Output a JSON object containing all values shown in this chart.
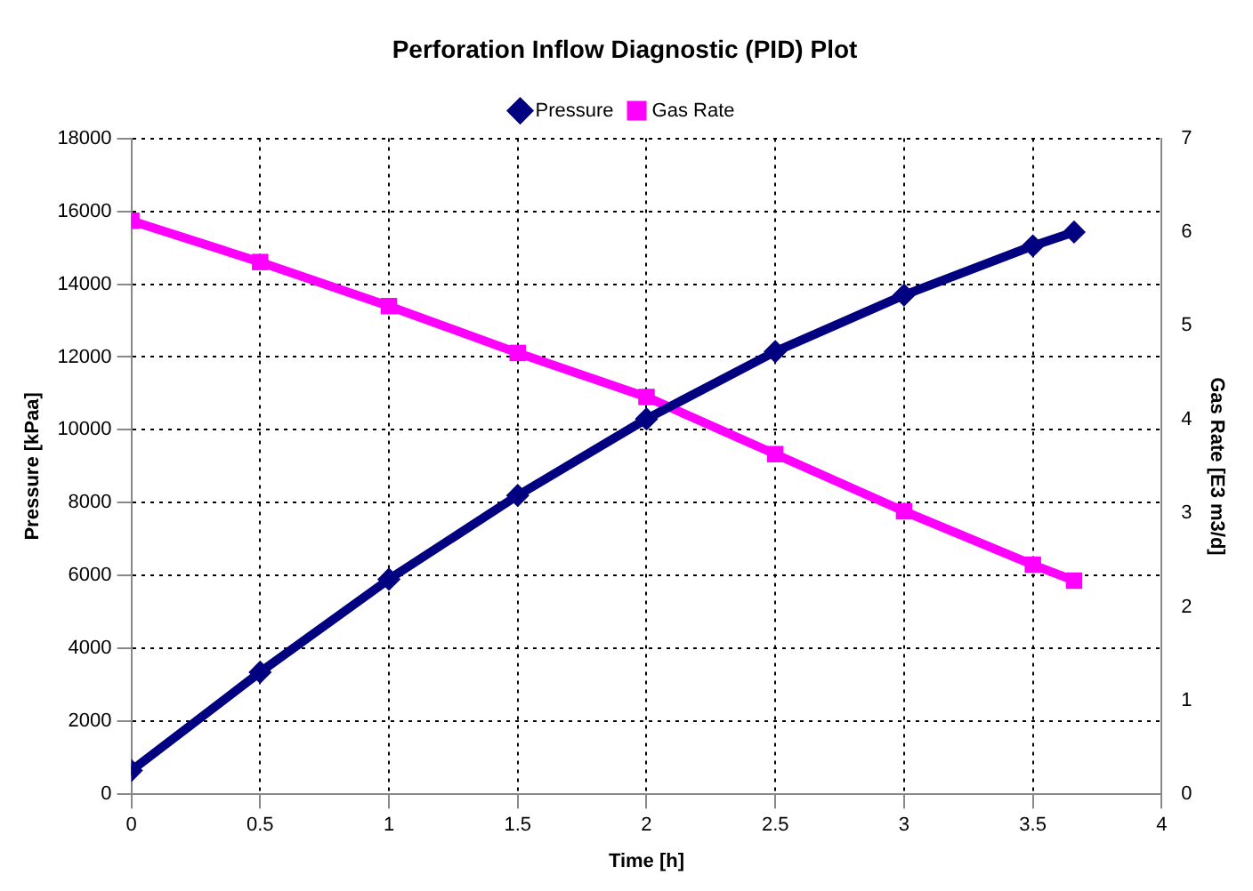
{
  "chart_data": {
    "type": "line",
    "title": "Perforation Inflow Diagnostic (PID) Plot",
    "xlabel": "Time [h]",
    "ylabel": "Pressure [kPaa]",
    "y2label": "Gas Rate [E3 m3/d]",
    "xlim": [
      0,
      4
    ],
    "xticks": [
      0,
      0.5,
      1,
      1.5,
      2,
      2.5,
      3,
      3.5,
      4
    ],
    "ylim": [
      0,
      18000
    ],
    "yticks": [
      0,
      2000,
      4000,
      6000,
      8000,
      10000,
      12000,
      14000,
      16000,
      18000
    ],
    "y2lim": [
      0,
      7
    ],
    "y2ticks": [
      0,
      1,
      2,
      3,
      4,
      5,
      6,
      7
    ],
    "grid": true,
    "legend": "top",
    "line_style": "solid",
    "series": [
      {
        "name": "Pressure",
        "color": "#000080",
        "marker": "diamond",
        "x": [
          0,
          0.5,
          1,
          1.5,
          2,
          2.5,
          3,
          3.5,
          3.66
        ],
        "values": [
          650,
          3350,
          5900,
          8200,
          10300,
          12150,
          13700,
          15050,
          15430
        ]
      },
      {
        "name": "Gas Rate",
        "color": "#ff00ff",
        "marker": "square",
        "axis": "y2",
        "x": [
          0,
          0.5,
          1,
          1.5,
          2,
          2.5,
          3,
          3.5,
          3.66
        ],
        "values": [
          6.12,
          5.68,
          5.21,
          4.71,
          4.24,
          3.63,
          3.02,
          2.45,
          2.28
        ]
      }
    ]
  }
}
